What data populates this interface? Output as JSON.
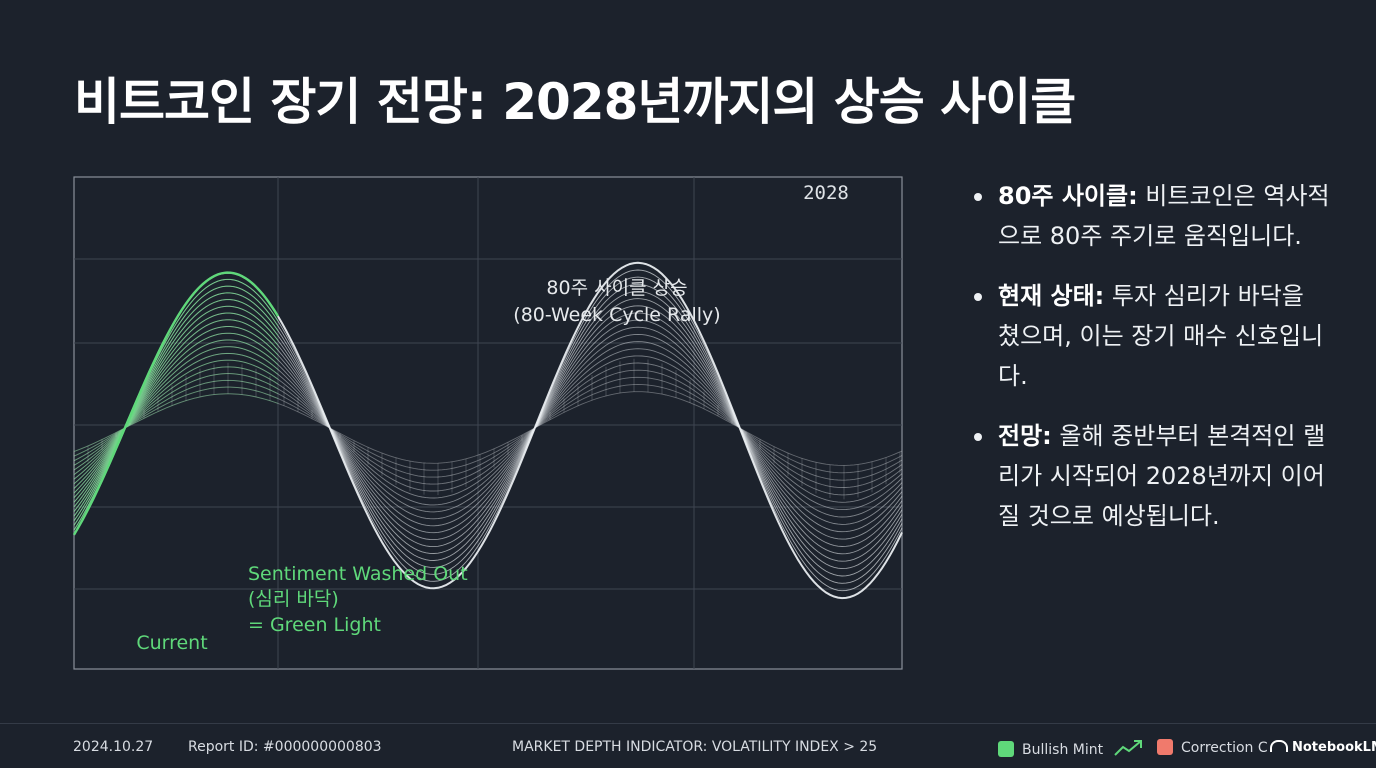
{
  "title": "비트코인 장기 전망: 2028년까지의 상승 사이클",
  "chart": {
    "label_2028": "2028",
    "rally_label_ko": "80주 사이클 상승",
    "rally_label_en": "(80-Week Cycle Rally)",
    "sentiment_line1": "Sentiment Washed Out",
    "sentiment_line2": "(심리 바닥)",
    "sentiment_line3": "= Green Light",
    "current_label": "Current",
    "green_color": "#5fd87a",
    "line_color": "#e8ecef"
  },
  "bullets": [
    {
      "term": "80주 사이클:",
      "text": " 비트코인은 역사적으로 80주 주기로 움직입니다."
    },
    {
      "term": "현재 상태:",
      "text": " 투자 심리가 바닥을 쳤으며, 이는 장기 매수 신호입니다."
    },
    {
      "term": "전망:",
      "text": " 올해 중반부터 본격적인 랠리가 시작되어 2028년까지 이어질 것으로 예상됩니다."
    }
  ],
  "footer": {
    "date": "2024.10.27",
    "report_id": "Report ID: #000000000803",
    "indicator": "MARKET DEPTH INDICATOR: VOLATILITY INDEX > 25",
    "legend_bullish": "Bullish Mint",
    "legend_correction": "Correction C",
    "bullish_color": "#5fd87a",
    "correction_color": "#f07a6c",
    "brand": "NotebookLM"
  }
}
